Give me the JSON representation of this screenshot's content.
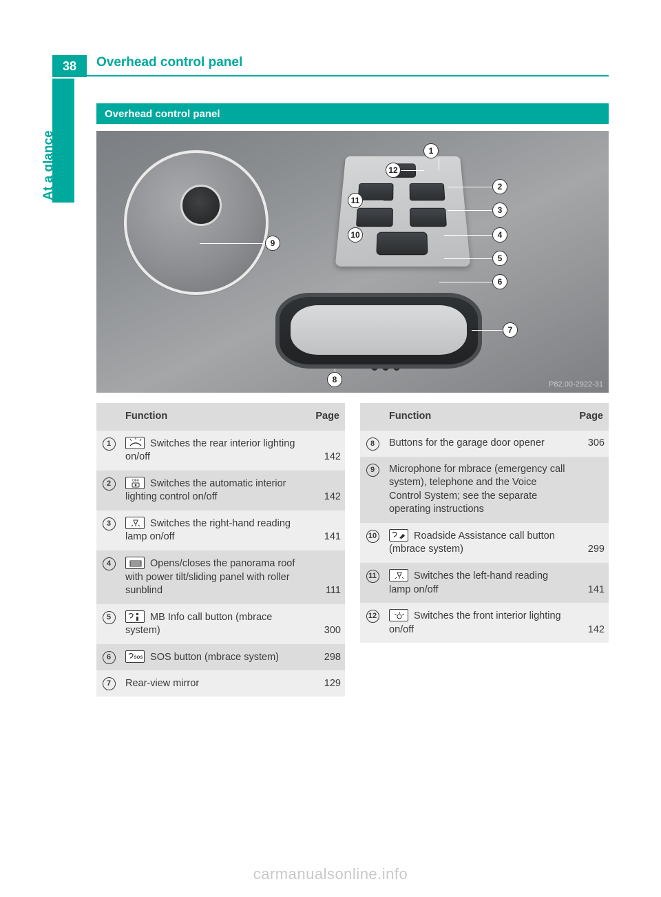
{
  "colors": {
    "accent": "#00a99d",
    "header_text": "#00a99d",
    "side_text": "#00a99d",
    "page_bg": "#ffffff",
    "row_odd": "#eeeeee",
    "row_even": "#dcdcdc",
    "text": "#3a3a3a",
    "watermark": "#c9c9c9"
  },
  "page_number": "38",
  "header_title": "Overhead control panel",
  "side_label": "At a glance",
  "section_title": "Overhead control panel",
  "figure": {
    "ref": "P82.00-2922-31",
    "callouts": [
      "1",
      "2",
      "3",
      "4",
      "5",
      "6",
      "7",
      "8",
      "9",
      "10",
      "11",
      "12"
    ]
  },
  "table_headers": {
    "func": "Function",
    "page": "Page"
  },
  "left_rows": [
    {
      "n": "1",
      "icon": "rear-light",
      "text_before": "",
      "text": " Switches the rear interior lighting on/off",
      "page": "142"
    },
    {
      "n": "2",
      "icon": "auto-light",
      "text_before": "",
      "text": " Switches the automatic interior lighting control on/off",
      "page": "142"
    },
    {
      "n": "3",
      "icon": "reading-lamp",
      "text_before": "",
      "text": " Switches the right-hand reading lamp on/off",
      "page": "141"
    },
    {
      "n": "4",
      "icon": "roof",
      "text_before": "",
      "text": " Opens/closes the panorama roof with power tilt/sliding panel with roller sunblind",
      "page": "111"
    },
    {
      "n": "5",
      "icon": "mb-info",
      "text_before": "",
      "text": " MB Info call button (mbrace system)",
      "page": "300"
    },
    {
      "n": "6",
      "icon": "sos",
      "text_before": "",
      "text": " SOS button (mbrace system)",
      "page": "298"
    },
    {
      "n": "7",
      "icon": "",
      "text_before": "",
      "text": "Rear-view mirror",
      "page": "129"
    }
  ],
  "right_rows": [
    {
      "n": "8",
      "icon": "",
      "text": "Buttons for the garage door opener",
      "page": "306"
    },
    {
      "n": "9",
      "icon": "",
      "text": "Microphone for mbrace (emergency call system), telephone and the Voice Control System; see the separate operating instructions",
      "page": ""
    },
    {
      "n": "10",
      "icon": "roadside",
      "text": " Roadside Assistance call button (mbrace system)",
      "page": "299"
    },
    {
      "n": "11",
      "icon": "reading-lamp",
      "text": " Switches the left-hand reading lamp on/off",
      "page": "141"
    },
    {
      "n": "12",
      "icon": "front-light",
      "text": " Switches the front interior lighting on/off",
      "page": "142"
    }
  ],
  "watermark": "carmanualsonline.info"
}
